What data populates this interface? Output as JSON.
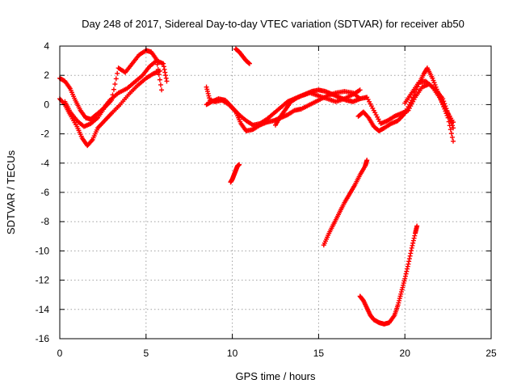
{
  "chart_data": {
    "type": "scatter",
    "title": "Day 248 of 2017, Sidereal Day-to-day VTEC variation (SDTVAR) for receiver ab50",
    "xlabel": "GPS time / hours",
    "ylabel": "SDTVAR / TECUs",
    "xlim": [
      0,
      25
    ],
    "ylim": [
      -16,
      4
    ],
    "x_ticks": [
      "0",
      "5",
      "10",
      "15",
      "20",
      "25"
    ],
    "y_ticks": [
      "4",
      "2",
      "0",
      "-2",
      "-4",
      "-6",
      "-8",
      "-10",
      "-12",
      "-14",
      "-16"
    ],
    "grid": true,
    "marker": "+",
    "color": "#ff0000",
    "series": [
      {
        "values": [
          [
            0.0,
            0.4
          ],
          [
            0.3,
            0.0
          ],
          [
            0.6,
            -0.7
          ],
          [
            1.0,
            -1.5
          ],
          [
            1.3,
            -2.3
          ],
          [
            1.6,
            -2.8
          ],
          [
            1.9,
            -2.4
          ],
          [
            2.2,
            -1.6
          ],
          [
            2.6,
            -1.1
          ],
          [
            3.0,
            -0.6
          ],
          [
            3.5,
            0.0
          ],
          [
            4.0,
            0.7
          ],
          [
            4.5,
            1.3
          ],
          [
            5.0,
            1.8
          ],
          [
            5.4,
            2.1
          ],
          [
            5.8,
            2.3
          ]
        ]
      },
      {
        "values": [
          [
            0.0,
            1.8
          ],
          [
            0.3,
            1.6
          ],
          [
            0.6,
            1.1
          ],
          [
            0.9,
            0.3
          ],
          [
            1.2,
            -0.4
          ],
          [
            1.5,
            -0.9
          ],
          [
            1.8,
            -1.0
          ],
          [
            2.1,
            -0.7
          ],
          [
            2.5,
            -0.3
          ],
          [
            2.9,
            0.3
          ],
          [
            3.4,
            0.8
          ],
          [
            3.9,
            1.1
          ],
          [
            4.3,
            1.5
          ],
          [
            4.8,
            2.0
          ],
          [
            5.2,
            2.6
          ],
          [
            5.6,
            3.0
          ],
          [
            6.0,
            2.8
          ],
          [
            6.2,
            1.6
          ]
        ]
      },
      {
        "values": [
          [
            0.3,
            0.2
          ],
          [
            0.6,
            -0.5
          ],
          [
            1.0,
            -1.1
          ],
          [
            1.4,
            -1.5
          ],
          [
            1.8,
            -1.3
          ],
          [
            2.2,
            -0.9
          ],
          [
            2.6,
            -0.2
          ],
          [
            3.0,
            0.3
          ],
          [
            3.4,
            2.5
          ],
          [
            3.8,
            2.2
          ],
          [
            4.2,
            2.8
          ],
          [
            4.6,
            3.4
          ],
          [
            5.0,
            3.7
          ],
          [
            5.3,
            3.6
          ],
          [
            5.6,
            3.1
          ],
          [
            5.9,
            1.0
          ]
        ]
      },
      {
        "values": [
          [
            8.5,
            1.2
          ],
          [
            8.7,
            0.3
          ],
          [
            9.0,
            0.2
          ],
          [
            9.4,
            0.3
          ],
          [
            9.8,
            0.0
          ],
          [
            10.2,
            -0.5
          ],
          [
            10.5,
            -1.3
          ],
          [
            10.8,
            -1.8
          ],
          [
            11.2,
            -1.7
          ],
          [
            11.6,
            -1.4
          ],
          [
            12.0,
            -1.2
          ],
          [
            12.4,
            -1.1
          ],
          [
            12.8,
            -0.9
          ],
          [
            13.2,
            -0.7
          ],
          [
            13.6,
            -0.4
          ],
          [
            14.0,
            -0.3
          ],
          [
            14.5,
            0.0
          ],
          [
            15.0,
            0.3
          ],
          [
            15.5,
            0.6
          ],
          [
            16.0,
            0.8
          ],
          [
            16.5,
            0.9
          ],
          [
            17.0,
            0.8
          ],
          [
            17.4,
            0.4
          ]
        ]
      },
      {
        "values": [
          [
            8.5,
            0.0
          ],
          [
            8.8,
            0.2
          ],
          [
            9.2,
            0.4
          ],
          [
            9.6,
            0.3
          ],
          [
            10.0,
            -0.2
          ],
          [
            10.4,
            -0.7
          ],
          [
            10.8,
            -1.1
          ],
          [
            11.2,
            -1.4
          ],
          [
            11.6,
            -1.3
          ],
          [
            12.0,
            -1.0
          ],
          [
            12.4,
            -0.6
          ],
          [
            12.8,
            -0.2
          ],
          [
            13.2,
            0.2
          ],
          [
            13.6,
            0.4
          ],
          [
            14.0,
            0.6
          ],
          [
            14.5,
            0.8
          ],
          [
            15.0,
            0.6
          ],
          [
            15.5,
            0.4
          ],
          [
            16.0,
            0.2
          ],
          [
            16.5,
            0.4
          ],
          [
            17.0,
            0.7
          ],
          [
            17.4,
            1.0
          ]
        ]
      },
      {
        "values": [
          [
            12.5,
            -1.4
          ],
          [
            12.8,
            -0.8
          ],
          [
            13.1,
            -0.3
          ],
          [
            13.4,
            0.2
          ],
          [
            13.8,
            0.5
          ],
          [
            14.2,
            0.7
          ],
          [
            14.6,
            0.9
          ],
          [
            15.0,
            1.0
          ],
          [
            15.4,
            0.9
          ],
          [
            15.8,
            0.7
          ],
          [
            16.2,
            0.5
          ],
          [
            16.6,
            0.3
          ],
          [
            17.0,
            0.2
          ],
          [
            17.4,
            0.4
          ],
          [
            17.8,
            0.5
          ],
          [
            18.2,
            -0.4
          ],
          [
            18.6,
            -1.3
          ],
          [
            19.0,
            -1.1
          ],
          [
            19.4,
            -0.8
          ],
          [
            19.8,
            -0.6
          ],
          [
            20.2,
            -0.4
          ],
          [
            20.6,
            0.5
          ],
          [
            21.0,
            1.2
          ],
          [
            21.4,
            1.4
          ],
          [
            21.8,
            1.0
          ],
          [
            22.2,
            0.4
          ],
          [
            22.5,
            -0.6
          ],
          [
            22.8,
            -1.6
          ]
        ]
      },
      {
        "values": [
          [
            17.3,
            -0.8
          ],
          [
            17.6,
            -0.5
          ],
          [
            17.9,
            -0.9
          ],
          [
            18.2,
            -1.5
          ],
          [
            18.5,
            -1.8
          ],
          [
            18.8,
            -1.6
          ],
          [
            19.2,
            -1.3
          ],
          [
            19.6,
            -1.1
          ],
          [
            20.0,
            -0.6
          ],
          [
            20.4,
            0.3
          ],
          [
            20.8,
            1.4
          ],
          [
            21.1,
            2.1
          ],
          [
            21.3,
            2.5
          ],
          [
            21.6,
            1.8
          ],
          [
            21.9,
            0.9
          ],
          [
            22.2,
            0.0
          ],
          [
            22.5,
            -0.9
          ],
          [
            22.8,
            -2.5
          ]
        ]
      },
      {
        "values": [
          [
            20.0,
            0.1
          ],
          [
            20.4,
            0.8
          ],
          [
            20.8,
            1.5
          ],
          [
            21.2,
            1.6
          ],
          [
            21.6,
            1.2
          ],
          [
            22.0,
            0.5
          ],
          [
            22.4,
            -0.4
          ],
          [
            22.8,
            -1.2
          ]
        ]
      },
      {
        "values": [
          [
            9.9,
            -5.3
          ],
          [
            10.0,
            -5.1
          ],
          [
            10.1,
            -4.8
          ],
          [
            10.2,
            -4.5
          ],
          [
            10.3,
            -4.2
          ],
          [
            10.4,
            -4.1
          ]
        ]
      },
      {
        "values": [
          [
            10.2,
            3.8
          ],
          [
            10.4,
            3.6
          ],
          [
            10.6,
            3.3
          ],
          [
            10.8,
            3.0
          ],
          [
            11.0,
            2.8
          ]
        ]
      },
      {
        "values": [
          [
            15.3,
            -9.6
          ],
          [
            15.6,
            -8.8
          ],
          [
            15.9,
            -8.1
          ],
          [
            16.2,
            -7.4
          ],
          [
            16.5,
            -6.7
          ],
          [
            16.8,
            -6.1
          ],
          [
            17.1,
            -5.5
          ],
          [
            17.4,
            -4.8
          ],
          [
            17.7,
            -4.2
          ],
          [
            17.8,
            -3.8
          ]
        ]
      },
      {
        "values": [
          [
            17.4,
            -13.1
          ],
          [
            17.6,
            -13.4
          ],
          [
            17.8,
            -13.9
          ],
          [
            18.0,
            -14.4
          ],
          [
            18.2,
            -14.7
          ],
          [
            18.5,
            -14.9
          ],
          [
            18.8,
            -15.0
          ],
          [
            19.1,
            -14.9
          ],
          [
            19.4,
            -14.4
          ],
          [
            19.6,
            -13.7
          ],
          [
            19.8,
            -12.8
          ],
          [
            20.0,
            -11.9
          ],
          [
            20.2,
            -10.9
          ],
          [
            20.4,
            -9.8
          ],
          [
            20.6,
            -8.8
          ],
          [
            20.7,
            -8.3
          ]
        ]
      }
    ]
  }
}
